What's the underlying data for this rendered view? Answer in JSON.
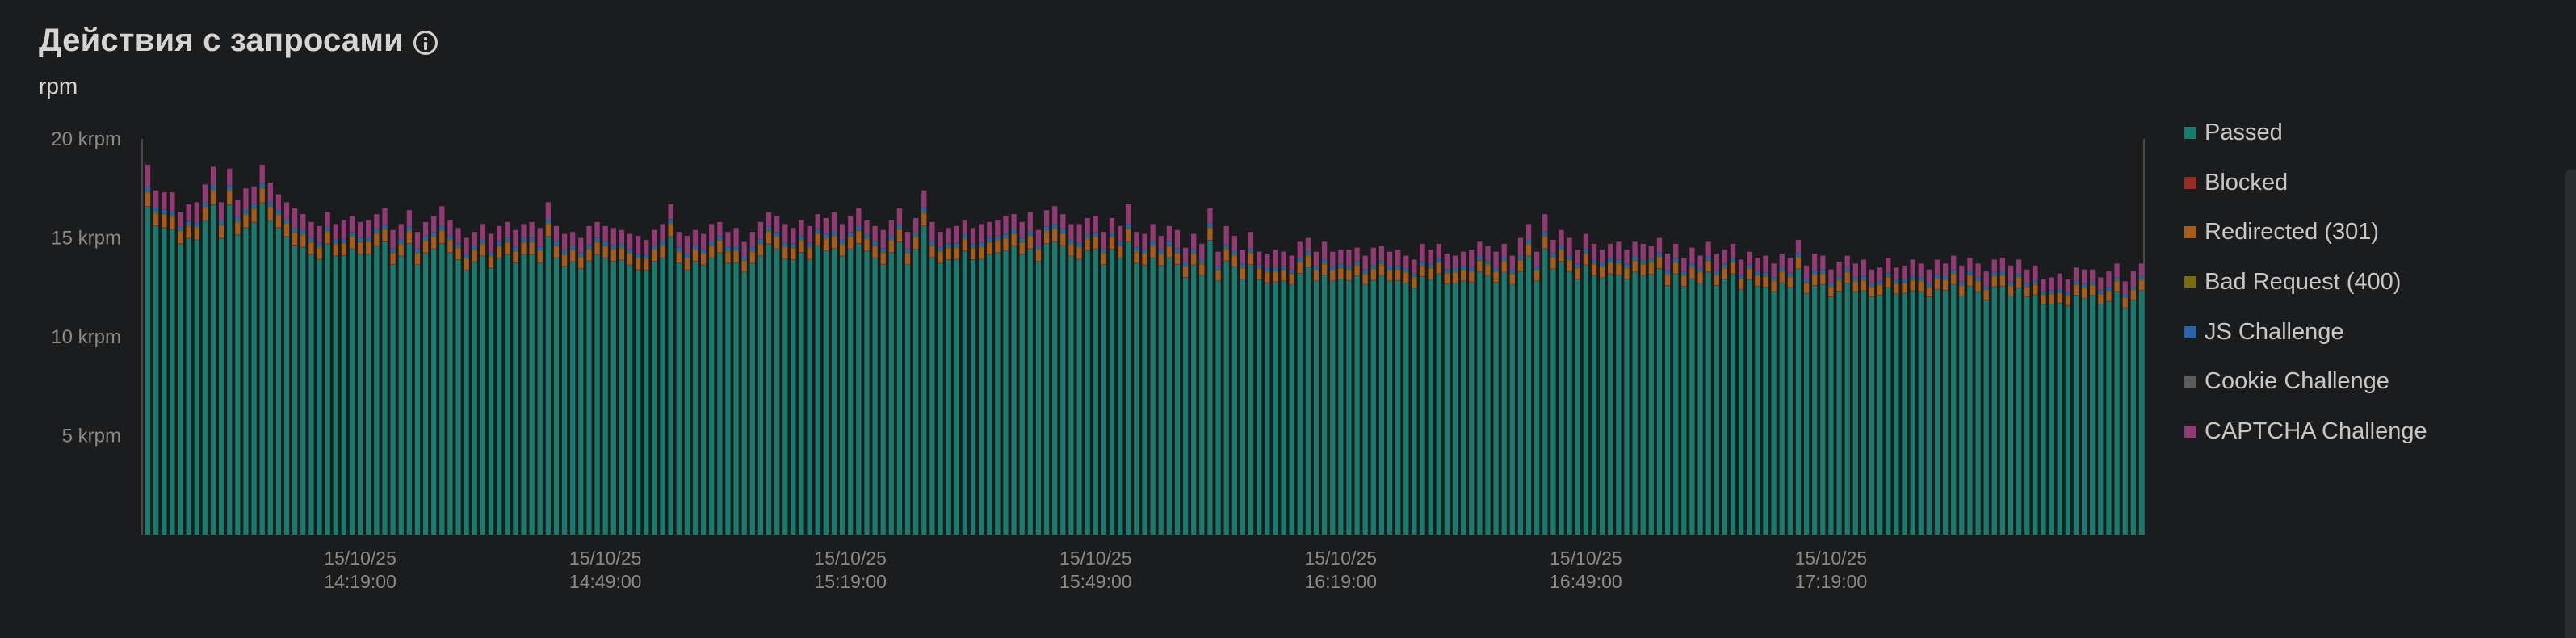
{
  "header": {
    "title": "Действия с запросами",
    "unit": "rpm"
  },
  "chart_data": {
    "type": "bar",
    "stacked": true,
    "y_ticks": [
      {
        "value": 20000,
        "label": "20 krpm"
      },
      {
        "value": 15000,
        "label": "15 krpm"
      },
      {
        "value": 10000,
        "label": "10 krpm"
      },
      {
        "value": 5000,
        "label": "5 krpm"
      }
    ],
    "ylim": [
      0,
      20000
    ],
    "x_ticks": [
      {
        "date": "15/10/25",
        "time": "14:19:00",
        "bar_index": 26
      },
      {
        "date": "15/10/25",
        "time": "14:49:00",
        "bar_index": 56
      },
      {
        "date": "15/10/25",
        "time": "15:19:00",
        "bar_index": 86
      },
      {
        "date": "15/10/25",
        "time": "15:49:00",
        "bar_index": 116
      },
      {
        "date": "15/10/25",
        "time": "16:19:00",
        "bar_index": 146
      },
      {
        "date": "15/10/25",
        "time": "16:49:00",
        "bar_index": 176
      },
      {
        "date": "15/10/25",
        "time": "17:19:00",
        "bar_index": 206
      }
    ],
    "categories_start": "15/10/25 13:53:00",
    "category_step_minutes": 1,
    "series": [
      {
        "name": "Passed",
        "color": "#1a7a6d",
        "values": []
      },
      {
        "name": "Blocked",
        "color": "#9c2a24",
        "values": []
      },
      {
        "name": "Redirected (301)",
        "color": "#a65d1c",
        "values": []
      },
      {
        "name": "Bad Request (400)",
        "color": "#7a6a14",
        "values": []
      },
      {
        "name": "JS Challenge",
        "color": "#2a64a6",
        "values": []
      },
      {
        "name": "Cookie Challenge",
        "color": "#5c5c5c",
        "values": []
      },
      {
        "name": "CAPTCHA Challenge",
        "color": "#923a74",
        "values": []
      }
    ],
    "totals": [
      18700,
      17400,
      17300,
      17300,
      16300,
      16700,
      16800,
      17700,
      18600,
      16800,
      18500,
      16900,
      17500,
      17600,
      18700,
      17800,
      17200,
      16800,
      16500,
      16200,
      15800,
      15600,
      16300,
      15700,
      15900,
      16100,
      15800,
      15900,
      16200,
      16500,
      15400,
      15700,
      16400,
      15300,
      15800,
      16100,
      16600,
      15900,
      15500,
      15000,
      15300,
      15700,
      15200,
      15600,
      15800,
      15400,
      15700,
      15800,
      15500,
      16800,
      15600,
      15200,
      15300,
      15000,
      15600,
      15800,
      15600,
      15500,
      15400,
      15200,
      15100,
      14900,
      15400,
      15700,
      16700,
      15300,
      15100,
      15400,
      15200,
      15700,
      15800,
      15300,
      15500,
      14800,
      15300,
      15800,
      16300,
      16100,
      15700,
      15500,
      15900,
      15600,
      16200,
      16000,
      16300,
      15700,
      16100,
      16500,
      15900,
      15600,
      15400,
      15900,
      16500,
      15300,
      16000,
      17400,
      15800,
      15300,
      15500,
      15600,
      15900,
      15500,
      15700,
      15800,
      15900,
      16100,
      16200,
      15800,
      16300,
      15400,
      16400,
      16600,
      16200,
      15700,
      15700,
      16000,
      16100,
      15300,
      16000,
      15600,
      16700,
      15300,
      15200,
      15700,
      15100,
      15600,
      15400,
      14500,
      15200,
      14700,
      16500,
      14300,
      15600,
      15100,
      14400,
      15300,
      14300,
      14200,
      14400,
      14300,
      14100,
      14800,
      15000,
      14300,
      14800,
      14300,
      14400,
      14400,
      14500,
      14100,
      14500,
      14600,
      14300,
      14400,
      14100,
      13900,
      14700,
      14400,
      14700,
      14200,
      14100,
      14300,
      14400,
      14800,
      14600,
      14300,
      14700,
      14100,
      15000,
      15700,
      14300,
      16200,
      14900,
      15400,
      15000,
      14400,
      15200,
      14700,
      14400,
      14700,
      14800,
      14400,
      14800,
      14700,
      14600,
      15000,
      14200,
      14700,
      14000,
      14500,
      14100,
      14800,
      14200,
      14400,
      14700,
      13900,
      14300,
      14000,
      14100,
      13700,
      14200,
      14000,
      14900,
      13600,
      14200,
      14100,
      13400,
      13800,
      14100,
      13700,
      13900,
      13400,
      13500,
      14000,
      13500,
      13600,
      13900,
      13700,
      13400,
      13900,
      13700,
      14100,
      13600,
      14000,
      13700,
      13300,
      13900,
      14000,
      13600,
      13900,
      13400,
      13600,
      12900,
      13000,
      13200,
      12900,
      13500,
      13400,
      13400,
      13000,
      13300,
      13700,
      12800,
      13300,
      13700
    ]
  },
  "legend": [
    {
      "label": "Passed",
      "color": "#1a7a6d"
    },
    {
      "label": "Blocked",
      "color": "#9c2a24"
    },
    {
      "label": "Redirected (301)",
      "color": "#a65d1c"
    },
    {
      "label": "Bad Request (400)",
      "color": "#7a6a14"
    },
    {
      "label": "JS Challenge",
      "color": "#2a64a6"
    },
    {
      "label": "Cookie Challenge",
      "color": "#5c5c5c"
    },
    {
      "label": "CAPTCHA Challenge",
      "color": "#923a74"
    }
  ]
}
